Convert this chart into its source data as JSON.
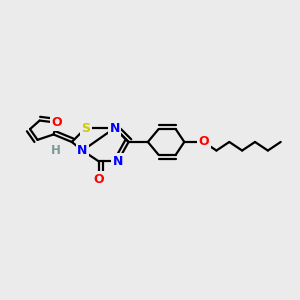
{
  "bg_color": "#ebebeb",
  "atom_colors": {
    "N": "#0000ff",
    "O": "#ff0000",
    "S": "#cccc00",
    "C": "#000000",
    "H": "#7a9a9a"
  },
  "bond_color": "#000000",
  "bond_width": 1.6
}
